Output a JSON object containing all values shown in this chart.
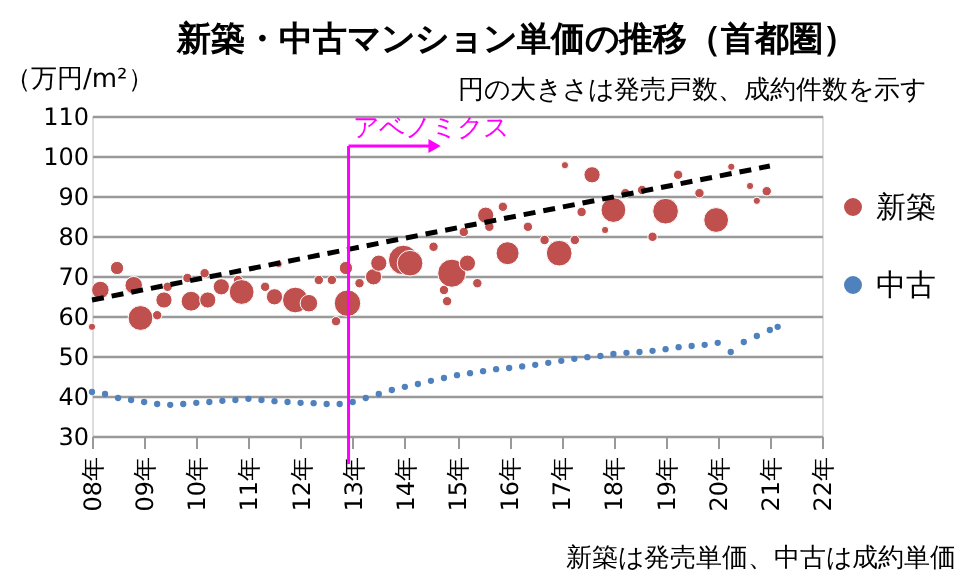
{
  "chart_data": {
    "type": "bubble",
    "title": "新築・中古マンション単価の推移（首都圏）",
    "ylabel": "（万円/m²）",
    "annotations": [
      "円の大きさは発売戸数、成約件数を示す",
      "新築は発売単価、中古は成約単価"
    ],
    "xlim": [
      8,
      22
    ],
    "xticks": [
      {
        "value": 8,
        "label": "08年"
      },
      {
        "value": 9,
        "label": "09年"
      },
      {
        "value": 10,
        "label": "10年"
      },
      {
        "value": 11,
        "label": "11年"
      },
      {
        "value": 12,
        "label": "12年"
      },
      {
        "value": 13,
        "label": "13年"
      },
      {
        "value": 14,
        "label": "14年"
      },
      {
        "value": 15,
        "label": "15年"
      },
      {
        "value": 16,
        "label": "16年"
      },
      {
        "value": 17,
        "label": "17年"
      },
      {
        "value": 18,
        "label": "18年"
      },
      {
        "value": 19,
        "label": "19年"
      },
      {
        "value": 20,
        "label": "20年"
      },
      {
        "value": 21,
        "label": "21年"
      },
      {
        "value": 22,
        "label": "22年"
      }
    ],
    "ylim": [
      30,
      110
    ],
    "yticks": [
      30,
      40,
      50,
      60,
      70,
      80,
      90,
      100,
      110
    ],
    "grid": "y",
    "legend": "right",
    "ref_lines": [
      {
        "axis": "x",
        "value": 12.92,
        "label": "アベノミクス",
        "color": "#ff00ff"
      }
    ],
    "series": [
      {
        "name": "新築",
        "color": "#c0504d",
        "x": [
          8.0,
          8.16,
          8.48,
          8.8,
          8.93,
          9.25,
          9.38,
          9.45,
          9.83,
          9.9,
          10.16,
          10.22,
          10.48,
          10.8,
          10.87,
          11.32,
          11.5,
          11.58,
          11.9,
          12.16,
          12.35,
          12.6,
          12.68,
          12.87,
          12.9,
          13.13,
          13.4,
          13.5,
          13.97,
          14.1,
          14.55,
          14.75,
          14.81,
          14.9,
          15.13,
          15.2,
          15.39,
          15.55,
          15.62,
          15.88,
          15.97,
          16.36,
          16.68,
          16.96,
          17.07,
          17.26,
          17.39,
          17.59,
          17.84,
          18.0,
          18.23,
          18.55,
          18.75,
          19.0,
          19.24,
          19.65,
          19.97,
          20.26,
          20.62,
          20.75,
          20.94
        ],
        "values": [
          57.3,
          66.5,
          72,
          67.7,
          59.5,
          60.2,
          64,
          67.3,
          69.5,
          63.7,
          70.7,
          64,
          67.3,
          69,
          66,
          67.3,
          64.8,
          73,
          64,
          63.2,
          69,
          69,
          58.7,
          72,
          63.2,
          68.2,
          69.8,
          73.2,
          74,
          73.2,
          77.3,
          66.5,
          63.7,
          70.7,
          81,
          73.2,
          68.2,
          85.2,
          82.3,
          87.3,
          75.7,
          82.3,
          79,
          75.7,
          97.7,
          79,
          86,
          95.3,
          81.5,
          86.5,
          90.7,
          91.5,
          79.8,
          86.2,
          95.3,
          90.7,
          84,
          97.3,
          92.5,
          88.8,
          91.2
        ],
        "sizes": [
          0.06,
          0.35,
          0.2,
          0.35,
          0.7,
          0.1,
          0.3,
          0.1,
          0.1,
          0.45,
          0.1,
          0.3,
          0.3,
          0.1,
          0.7,
          0.1,
          0.3,
          0.06,
          0.75,
          0.35,
          0.1,
          0.1,
          0.1,
          0.2,
          0.8,
          0.1,
          0.3,
          0.3,
          1,
          0.75,
          0.1,
          0.1,
          0.1,
          0.9,
          0.1,
          0.3,
          0.1,
          0.3,
          0.1,
          0.1,
          0.6,
          0.1,
          0.1,
          0.75,
          0.06,
          0.1,
          0.1,
          0.3,
          0.06,
          0.7,
          0.1,
          0.1,
          0.1,
          0.75,
          0.1,
          0.1,
          0.7,
          0.06,
          0.06,
          0.06,
          0.1
        ]
      },
      {
        "name": "中古",
        "type": "scatter",
        "color": "#4f81bd",
        "x": [
          8.0,
          8.25,
          8.5,
          8.75,
          9.0,
          9.25,
          9.5,
          9.75,
          10.0,
          10.25,
          10.5,
          10.75,
          11.0,
          11.25,
          11.5,
          11.75,
          12.0,
          12.25,
          12.5,
          12.75,
          13.0,
          13.25,
          13.5,
          13.75,
          14.0,
          14.25,
          14.5,
          14.75,
          15.0,
          15.25,
          15.5,
          15.75,
          16.0,
          16.25,
          16.5,
          16.75,
          17.0,
          17.25,
          17.5,
          17.75,
          18.0,
          18.25,
          18.5,
          18.75,
          19.0,
          19.25,
          19.5,
          19.75,
          20.0,
          20.25,
          20.5,
          20.75,
          21.0,
          21.15
        ],
        "values": [
          41,
          40.5,
          39.5,
          39,
          38.5,
          38,
          37.8,
          38,
          38.3,
          38.5,
          38.8,
          39,
          39.3,
          39,
          38.7,
          38.5,
          38.3,
          38.2,
          38,
          38,
          38.5,
          39.5,
          40.5,
          41.5,
          42.3,
          43,
          43.8,
          44.5,
          45.2,
          45.7,
          46.2,
          46.7,
          47,
          47.4,
          47.8,
          48.3,
          48.8,
          49.3,
          49.7,
          50,
          50.5,
          50.8,
          51,
          51.3,
          51.7,
          52.2,
          52.5,
          52.8,
          53.3,
          51,
          53.5,
          55,
          56.5,
          57.3
        ]
      },
      {
        "type": "line",
        "color": "#000000",
        "line_style": "dashed",
        "x": [
          8,
          21.0
        ],
        "values": [
          64,
          97.5
        ]
      }
    ]
  }
}
